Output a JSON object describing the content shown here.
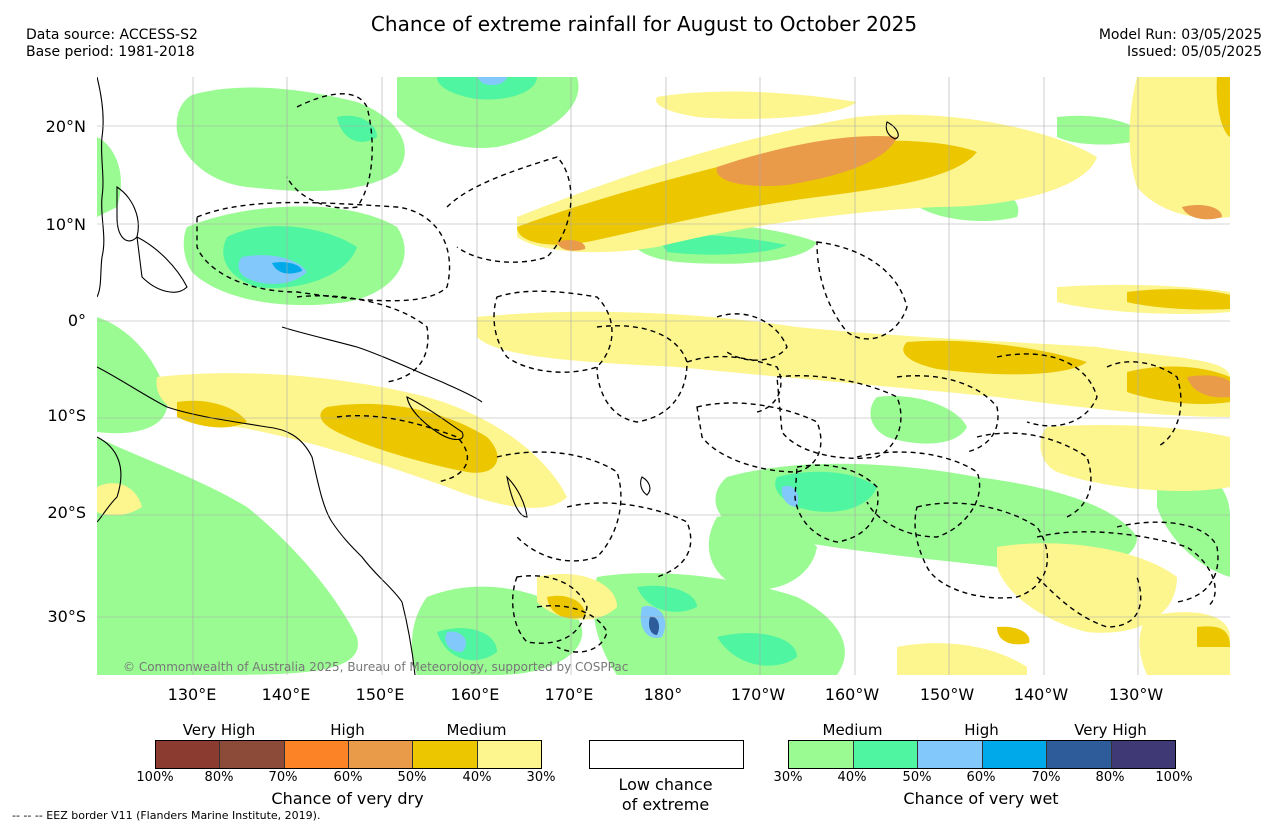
{
  "title": "Chance of extreme rainfall for August to October 2025",
  "header": {
    "data_source": "Data source: ACCESS-S2",
    "base_period": "Base period: 1981-2018",
    "model_run": "Model Run: 03/05/2025",
    "issued": "Issued: 05/05/2025"
  },
  "map": {
    "lat_labels": [
      "20°N",
      "10°N",
      "0°",
      "10°S",
      "20°S",
      "30°S"
    ],
    "lon_labels": [
      "130°E",
      "140°E",
      "150°E",
      "160°E",
      "170°E",
      "180°",
      "170°W",
      "160°W",
      "150°W",
      "140°W",
      "130°W"
    ],
    "copyright": "© Commonwealth of Australia 2025, Bureau of Meteorology, supported by COSPPac",
    "colors": {
      "dry_30_40": "#fdf58e",
      "dry_40_50": "#ecc700",
      "dry_50_60": "#e99b4a",
      "wet_30_40": "#9afb93",
      "wet_40_50": "#4ff5a0",
      "wet_50_60": "#83c8fb",
      "wet_60_70": "#00aaea"
    }
  },
  "legend": {
    "dry": {
      "levels": [
        "Very High",
        "High",
        "Medium"
      ],
      "percents": [
        "100%",
        "80%",
        "70%",
        "60%",
        "50%",
        "40%",
        "30%"
      ],
      "title": "Chance of very dry",
      "colors": [
        "#8c3b30",
        "#8b4b38",
        "#fd8426",
        "#e99b4a",
        "#ecc700",
        "#fdf58e"
      ]
    },
    "low": {
      "title_line1": "Low chance",
      "title_line2": "of extreme"
    },
    "wet": {
      "levels": [
        "Medium",
        "High",
        "Very High"
      ],
      "percents": [
        "30%",
        "40%",
        "50%",
        "60%",
        "70%",
        "80%",
        "100%"
      ],
      "title": "Chance of very wet",
      "colors": [
        "#9afb93",
        "#4ff5a0",
        "#83c8fb",
        "#00aaea",
        "#2e5b9a",
        "#3f3a76"
      ]
    }
  },
  "footer": {
    "eez_note": "-- -- -- EEZ border V11 (Flanders Marine Institute, 2019)."
  }
}
